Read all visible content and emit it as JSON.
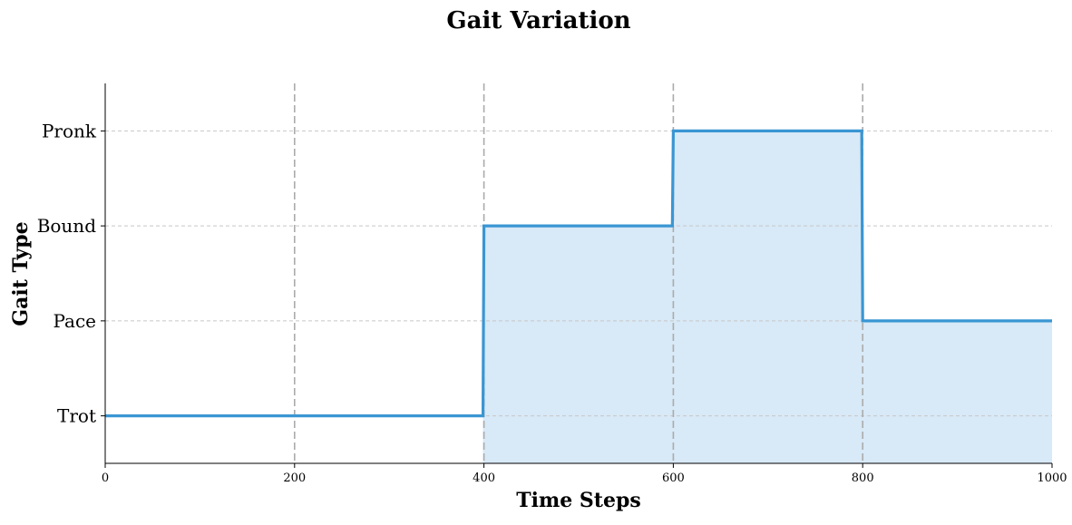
{
  "chart_data": {
    "type": "line",
    "title": "Gait Variation",
    "xlabel": "Time Steps",
    "ylabel": "Gait Type",
    "xlim": [
      0,
      1000
    ],
    "ylim": [
      -0.5,
      3.5
    ],
    "xticks": [
      0,
      200,
      400,
      600,
      800,
      1000
    ],
    "xtick_labels": [
      "0",
      "200",
      "400",
      "600",
      "800",
      "1000"
    ],
    "yticks": [
      0,
      1,
      2,
      3
    ],
    "ytick_labels": [
      "Trot",
      "Pace",
      "Bound",
      "Pronk"
    ],
    "vertical_markers": [
      200,
      400,
      600,
      800
    ],
    "grid": "horizontal dashed",
    "series": [
      {
        "style": "step line with filled area below",
        "color": "#3a96d3",
        "fill_color": "#d8e9f7",
        "x": [
          0,
          399,
          400,
          599,
          600,
          799,
          800,
          1000
        ],
        "y": [
          0,
          0,
          2,
          2,
          3,
          3,
          1,
          1
        ]
      }
    ]
  }
}
